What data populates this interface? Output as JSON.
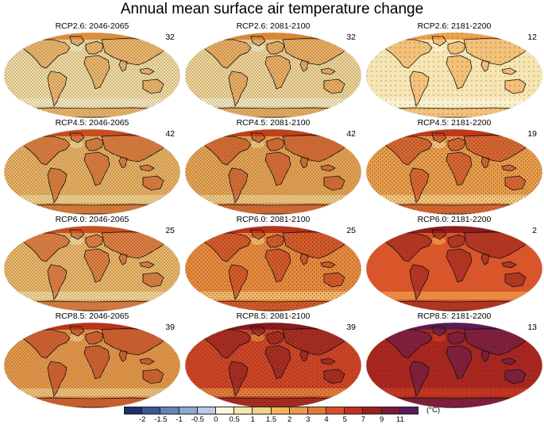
{
  "title": "Annual mean surface air temperature change",
  "panels": [
    {
      "label": "RCP2.6: 2046-2065",
      "count": "32",
      "fill": "#f6dfa3",
      "high": "#ee9a3f",
      "light": "#fbeec3",
      "dots": "dense"
    },
    {
      "label": "RCP2.6: 2081-2100",
      "count": "32",
      "fill": "#f5d99a",
      "high": "#ec9238",
      "light": "#fbeec3",
      "dots": "dense"
    },
    {
      "label": "RCP2.6: 2181-2200",
      "count": "12",
      "fill": "#f8e6b2",
      "high": "#eea348",
      "light": "#fcf2cf",
      "dots": "sparse"
    },
    {
      "label": "RCP4.5: 2046-2065",
      "count": "42",
      "fill": "#eeb564",
      "high": "#d9531f",
      "light": "#f7d58f",
      "dots": "dense"
    },
    {
      "label": "RCP4.5: 2081-2100",
      "count": "42",
      "fill": "#eca753",
      "high": "#d2431b",
      "light": "#f5cd84",
      "dots": "dense"
    },
    {
      "label": "RCP4.5: 2181-2200",
      "count": "19",
      "fill": "#e99c49",
      "high": "#c93a1a",
      "light": "#f3c47a",
      "dots": "medium"
    },
    {
      "label": "RCP6.0: 2046-2065",
      "count": "25",
      "fill": "#f0ba6a",
      "high": "#da5420",
      "light": "#f8dc9a",
      "dots": "dense"
    },
    {
      "label": "RCP6.0: 2081-2100",
      "count": "25",
      "fill": "#e8893c",
      "high": "#c2321a",
      "light": "#f2b866",
      "dots": "medium"
    },
    {
      "label": "RCP6.0: 2181-2200",
      "count": "2",
      "fill": "#d9562a",
      "high": "#8e1c1e",
      "light": "#e98a40",
      "dots": "none"
    },
    {
      "label": "RCP8.5: 2046-2065",
      "count": "39",
      "fill": "#ec9c4a",
      "high": "#c9361b",
      "light": "#f5c67d",
      "dots": "dense"
    },
    {
      "label": "RCP8.5: 2081-2100",
      "count": "39",
      "fill": "#cf4424",
      "high": "#8a1a1e",
      "light": "#e47a38",
      "dots": "medium"
    },
    {
      "label": "RCP8.5: 2181-2200",
      "count": "13",
      "fill": "#a8261f",
      "high": "#5c1a52",
      "light": "#c2361f",
      "dots": "sparse"
    }
  ],
  "colorbar": {
    "ticks": [
      "-2",
      "-1.5",
      "-1",
      "-0.5",
      "0",
      "0.5",
      "1",
      "1.5",
      "2",
      "3",
      "4",
      "5",
      "7",
      "9",
      "11"
    ],
    "colors": [
      "#1d2f6f",
      "#3c5597",
      "#6483bb",
      "#8fa9d3",
      "#bccae3",
      "#fff7d6",
      "#fbe7a8",
      "#f6d283",
      "#f0b55e",
      "#eb9a4b",
      "#e47a36",
      "#d9512a",
      "#c3301f",
      "#9b1f1f",
      "#7a1a3c",
      "#5e1a5e"
    ],
    "unit": "(°C)"
  }
}
